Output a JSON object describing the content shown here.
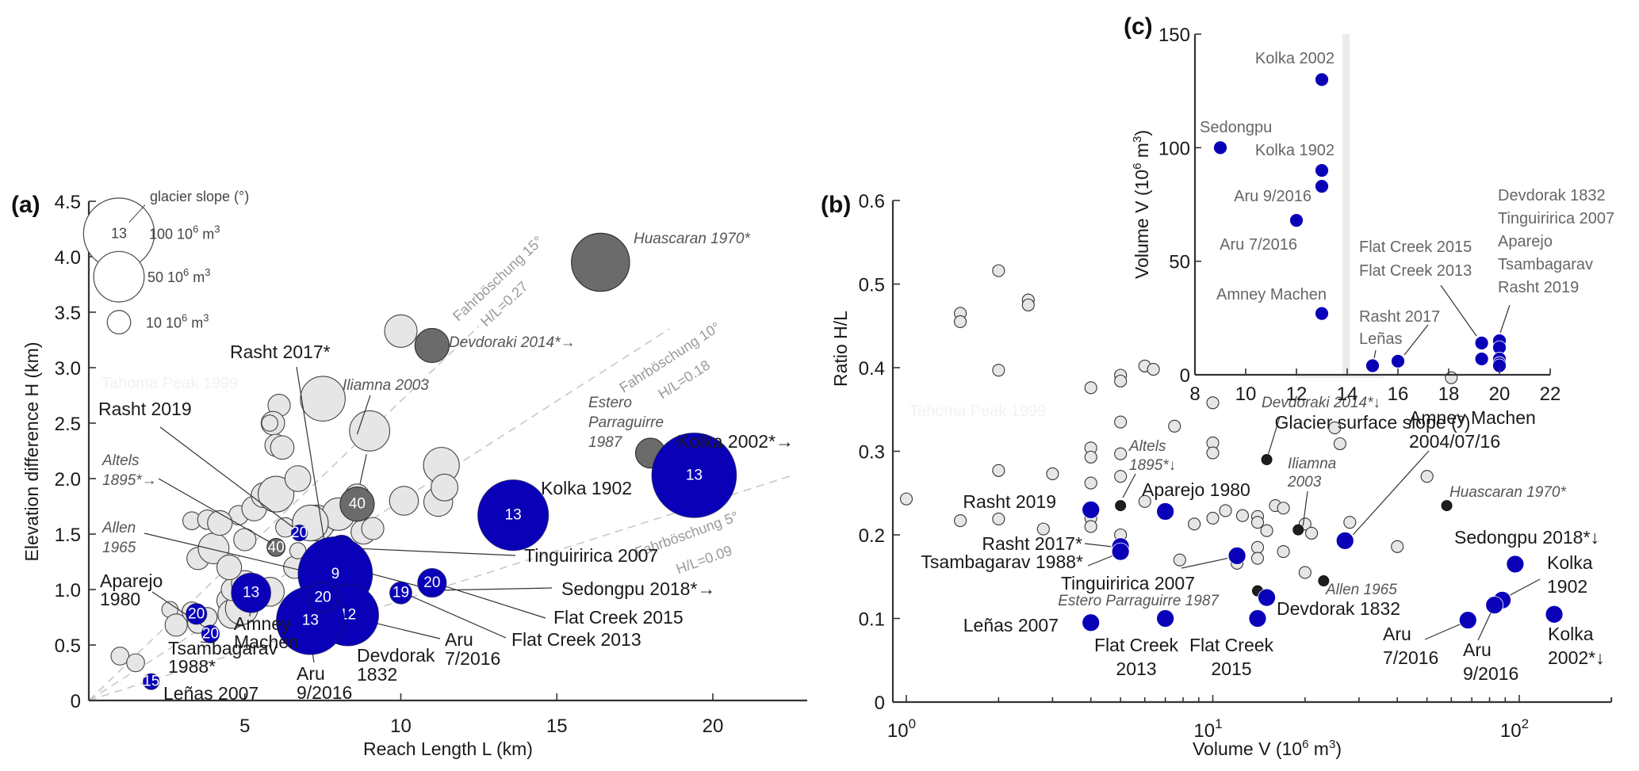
{
  "chart_data": [
    {
      "id": "a",
      "type": "scatter",
      "panel_label": "(a)",
      "xlabel": "Reach Length L (km)",
      "ylabel": "Elevation difference H (km)",
      "xlim": [
        0,
        23.2
      ],
      "ylim": [
        0,
        4.5
      ],
      "xticks": [
        5,
        10,
        15,
        20
      ],
      "xtick_labels": [
        "5",
        "10",
        "15",
        "20"
      ],
      "yticks": [
        0,
        0.5,
        1.0,
        1.5,
        2.0,
        2.5,
        3.0,
        3.5,
        4.0,
        4.5
      ],
      "ytick_labels": [
        "0",
        "0.5",
        "1.0",
        "1.5",
        "2.0",
        "2.5",
        "3.0",
        "3.5",
        "4.0",
        "4.5"
      ],
      "grid": false,
      "bubble_size_meaning": "volume (10^6 m^3)",
      "legend": {
        "title": "glacier slope (°)",
        "example_slope": "13",
        "entries": [
          {
            "volume": 100,
            "label": "100 10",
            "sup": "6",
            "unit": " m",
            "sup2": "3"
          },
          {
            "volume": 50,
            "label": "50 10",
            "sup": "6",
            "unit": " m",
            "sup2": "3"
          },
          {
            "volume": 10,
            "label": "10 10",
            "sup": "6",
            "unit": " m",
            "sup2": "3"
          }
        ],
        "placement": "top-left"
      },
      "fahrboeschung": [
        {
          "angle_label": "Fahrböschung 15°",
          "ratio_label": "H/L=0.27",
          "ratio": 0.27
        },
        {
          "angle_label": "Fahrböschung 10°",
          "ratio_label": "H/L=0.18",
          "ratio": 0.18
        },
        {
          "angle_label": "Fahrböschung 5°",
          "ratio_label": "H/L=0.09",
          "ratio": 0.09
        }
      ],
      "glacier_events": [
        {
          "name": "Kolka 2002*→",
          "L": 19.4,
          "H": 2.03,
          "volume": 130,
          "slope": "13"
        },
        {
          "name": "Kolka 1902",
          "L": 13.6,
          "H": 1.67,
          "volume": 90,
          "slope": "13"
        },
        {
          "name": "Flat Creek 2015",
          "L": 11.0,
          "H": 1.06,
          "volume": 14,
          "slope": "20"
        },
        {
          "name": "Flat Creek 2013",
          "L": 10.0,
          "H": 0.97,
          "volume": 8,
          "slope": "19"
        },
        {
          "name": "Tinguiririca 2007",
          "L": 8.1,
          "H": 1.37,
          "volume": 12,
          "slope": "20"
        },
        {
          "name": "Rasht 2017*",
          "L": 7.6,
          "H": 1.36,
          "volume": 5,
          "slope": "16"
        },
        {
          "name": "Sedongpu 2018*→",
          "L": 7.9,
          "H": 1.14,
          "volume": 100,
          "slope": "9"
        },
        {
          "name": "Rasht 2019",
          "L": 6.75,
          "H": 1.51,
          "volume": 4,
          "slope": "20"
        },
        {
          "name": "Aru 7/2016",
          "L": 8.3,
          "H": 0.77,
          "volume": 68,
          "slope": "12"
        },
        {
          "name": "Aru 9/2016",
          "L": 7.1,
          "H": 0.72,
          "volume": 83,
          "slope": "13"
        },
        {
          "name": "Devdorak 1832",
          "L": 7.5,
          "H": 0.93,
          "volume": 15,
          "slope": "20"
        },
        {
          "name": "Amney Machen",
          "L": 5.2,
          "H": 0.97,
          "volume": 27,
          "slope": "13"
        },
        {
          "name": "Aparejo 1980",
          "L": 3.45,
          "H": 0.78,
          "volume": 7,
          "slope": "20"
        },
        {
          "name": "Tsambagarav 1988*",
          "L": 3.9,
          "H": 0.6,
          "volume": 5,
          "slope": "20"
        },
        {
          "name": "Leñas 2007",
          "L": 2.0,
          "H": 0.17,
          "volume": 4,
          "slope": "15"
        }
      ],
      "other_events_dark": [
        {
          "name": "Huascaran 1970*",
          "L": 16.4,
          "H": 3.95,
          "volume": 60
        },
        {
          "name": "Devdoraki 2014*→",
          "L": 11.0,
          "H": 3.2,
          "volume": 20
        },
        {
          "name": "Estero Parraguirre 1987",
          "L": 18.0,
          "H": 2.23,
          "volume": 15
        },
        {
          "name": "Iliamna 2003 (40)",
          "L": 8.6,
          "H": 1.77,
          "volume": 20,
          "slope": "40"
        },
        {
          "name": "Altels 1895*→ (40)",
          "L": 6.0,
          "H": 1.38,
          "volume": 5,
          "slope": "40"
        },
        {
          "name": "Allen 1965",
          "L": 7.6,
          "H": 1.1,
          "volume": 23
        }
      ],
      "annotations_italic": [
        "Iliamna 2003",
        "Devdoraki 2014*→",
        "Huascaran 1970*",
        "Estero Parraguirre 1987",
        "Altels 1895*→",
        "Allen 1965"
      ],
      "ghost_label": "Tahoma Peak 1999",
      "other_events_light": [
        {
          "L": 1.0,
          "H": 0.4,
          "volume": 5
        },
        {
          "L": 1.5,
          "H": 0.34,
          "volume": 5
        },
        {
          "L": 2.6,
          "H": 0.82,
          "volume": 4
        },
        {
          "L": 2.8,
          "H": 0.68,
          "volume": 8
        },
        {
          "L": 3.3,
          "H": 0.8,
          "volume": 6
        },
        {
          "L": 3.5,
          "H": 0.7,
          "volume": 7
        },
        {
          "L": 3.8,
          "H": 0.75,
          "volume": 6
        },
        {
          "L": 4.5,
          "H": 0.9,
          "volume": 10
        },
        {
          "L": 4.6,
          "H": 0.78,
          "volume": 14
        },
        {
          "L": 4.9,
          "H": 0.83,
          "volume": 18
        },
        {
          "L": 4.6,
          "H": 1.0,
          "volume": 8
        },
        {
          "L": 3.5,
          "H": 1.28,
          "volume": 8
        },
        {
          "L": 3.3,
          "H": 1.62,
          "volume": 5
        },
        {
          "L": 3.8,
          "H": 1.63,
          "volume": 6
        },
        {
          "L": 4.0,
          "H": 1.37,
          "volume": 16
        },
        {
          "L": 4.8,
          "H": 1.67,
          "volume": 6
        },
        {
          "L": 4.2,
          "H": 1.6,
          "volume": 10
        },
        {
          "L": 5.0,
          "H": 1.45,
          "volume": 8
        },
        {
          "L": 5.3,
          "H": 1.73,
          "volume": 10
        },
        {
          "L": 5.6,
          "H": 1.85,
          "volume": 10
        },
        {
          "L": 6.0,
          "H": 1.86,
          "volume": 22
        },
        {
          "L": 6.1,
          "H": 2.66,
          "volume": 8
        },
        {
          "L": 5.9,
          "H": 2.5,
          "volume": 9
        },
        {
          "L": 5.8,
          "H": 2.5,
          "volume": 4
        },
        {
          "L": 6.0,
          "H": 2.3,
          "volume": 8
        },
        {
          "L": 6.2,
          "H": 2.28,
          "volume": 9
        },
        {
          "L": 6.3,
          "H": 1.56,
          "volume": 6
        },
        {
          "L": 6.7,
          "H": 2.0,
          "volume": 11
        },
        {
          "L": 7.5,
          "H": 2.72,
          "volume": 35
        },
        {
          "L": 7.6,
          "H": 1.62,
          "volume": 10
        },
        {
          "L": 7.3,
          "H": 1.6,
          "volume": 22
        },
        {
          "L": 8.0,
          "H": 1.68,
          "volume": 18
        },
        {
          "L": 8.6,
          "H": 1.84,
          "volume": 10
        },
        {
          "L": 8.8,
          "H": 1.52,
          "volume": 10
        },
        {
          "L": 9.0,
          "H": 2.43,
          "volume": 28
        },
        {
          "L": 10.0,
          "H": 3.33,
          "volume": 18
        },
        {
          "L": 10.1,
          "H": 1.8,
          "volume": 14
        },
        {
          "L": 11.2,
          "H": 1.79,
          "volume": 14
        },
        {
          "L": 11.3,
          "H": 2.12,
          "volume": 22
        },
        {
          "L": 11.4,
          "H": 1.92,
          "volume": 12
        },
        {
          "L": 9.1,
          "H": 1.55,
          "volume": 8
        },
        {
          "L": 5.8,
          "H": 0.98,
          "volume": 14
        },
        {
          "L": 7.1,
          "H": 1.6,
          "volume": 22
        },
        {
          "L": 6.6,
          "H": 1.2,
          "volume": 8
        },
        {
          "L": 6.7,
          "H": 1.35,
          "volume": 4
        },
        {
          "L": 5.0,
          "H": 1.05,
          "volume": 12
        },
        {
          "L": 4.5,
          "H": 1.2,
          "volume": 10
        }
      ]
    },
    {
      "id": "b",
      "type": "scatter",
      "panel_label": "(b)",
      "xlabel": "Volume V (10",
      "xlabel_sup": "6",
      "xlabel_mid": " m",
      "xlabel_sup2": "3",
      "xlabel_end": ")",
      "ylabel": "Ratio H/L",
      "xscale": "log",
      "xlim": [
        0.92,
        200
      ],
      "ylim": [
        0,
        0.6
      ],
      "xticks_major": [
        1,
        10,
        100
      ],
      "xtick_labels": [
        {
          "base": "10",
          "exp": "0"
        },
        {
          "base": "10",
          "exp": "1"
        },
        {
          "base": "10",
          "exp": "2"
        }
      ],
      "yticks": [
        0,
        0.1,
        0.2,
        0.3,
        0.4,
        0.5,
        0.6
      ],
      "ytick_labels": [
        "0",
        "0.1",
        "0.2",
        "0.3",
        "0.4",
        "0.5",
        "0.6"
      ],
      "grid": false,
      "ghost_label": "Tahoma Peak 1999",
      "glacier_events": [
        {
          "name": "Rasht 2019",
          "V": 4.0,
          "ratio": 0.23
        },
        {
          "name": "Aparejo 1980",
          "V": 7.0,
          "ratio": 0.228
        },
        {
          "name": "Rasht 2017*",
          "V": 5.0,
          "ratio": 0.186
        },
        {
          "name": "Tsambagarav 1988*",
          "V": 5.0,
          "ratio": 0.18
        },
        {
          "name": "Tinguiririca 2007",
          "V": 12.0,
          "ratio": 0.175
        },
        {
          "name": "Leñas 2007",
          "V": 4.0,
          "ratio": 0.095
        },
        {
          "name": "Flat Creek 2013",
          "V": 7.0,
          "ratio": 0.1
        },
        {
          "name": "Flat Creek 2015",
          "V": 14.0,
          "ratio": 0.1
        },
        {
          "name": "Devdorak 1832",
          "V": 15.0,
          "ratio": 0.125
        },
        {
          "name": "Amney Machen 2004/07/16",
          "V": 27.0,
          "ratio": 0.193
        },
        {
          "name": "Sedongpu 2018*↓",
          "V": 97.0,
          "ratio": 0.165
        },
        {
          "name": "Kolka 1902",
          "V": 88.0,
          "ratio": 0.122
        },
        {
          "name": "Aru 9/2016",
          "V": 83.0,
          "ratio": 0.116
        },
        {
          "name": "Aru 7/2016",
          "V": 68.0,
          "ratio": 0.098
        },
        {
          "name": "Kolka 2002*↓",
          "V": 130.0,
          "ratio": 0.105
        }
      ],
      "other_events_dark": [
        {
          "name": "Altels 1895*↓",
          "V": 5.0,
          "ratio": 0.235
        },
        {
          "name": "Devdoraki 2014*↓",
          "V": 15.0,
          "ratio": 0.29
        },
        {
          "name": "Iliamna 2003",
          "V": 19.0,
          "ratio": 0.206
        },
        {
          "name": "Huascaran 1970*",
          "V": 58.0,
          "ratio": 0.235
        },
        {
          "name": "Allen 1965",
          "V": 23.0,
          "ratio": 0.145
        },
        {
          "name": "Estero Parraguirre 1987",
          "V": 14.0,
          "ratio": 0.133
        }
      ],
      "other_events_light": [
        {
          "V": 1.0,
          "ratio": 0.243
        },
        {
          "V": 1.5,
          "ratio": 0.465
        },
        {
          "V": 1.5,
          "ratio": 0.455
        },
        {
          "V": 1.5,
          "ratio": 0.217
        },
        {
          "V": 2.0,
          "ratio": 0.516
        },
        {
          "V": 2.0,
          "ratio": 0.397
        },
        {
          "V": 2.0,
          "ratio": 0.277
        },
        {
          "V": 2.0,
          "ratio": 0.219
        },
        {
          "V": 2.5,
          "ratio": 0.481
        },
        {
          "V": 2.5,
          "ratio": 0.475
        },
        {
          "V": 2.8,
          "ratio": 0.207
        },
        {
          "V": 3.0,
          "ratio": 0.273
        },
        {
          "V": 4.0,
          "ratio": 0.376
        },
        {
          "V": 4.0,
          "ratio": 0.304
        },
        {
          "V": 4.0,
          "ratio": 0.293
        },
        {
          "V": 4.0,
          "ratio": 0.262
        },
        {
          "V": 4.0,
          "ratio": 0.22
        },
        {
          "V": 4.0,
          "ratio": 0.21
        },
        {
          "V": 5.0,
          "ratio": 0.391
        },
        {
          "V": 5.0,
          "ratio": 0.384
        },
        {
          "V": 5.0,
          "ratio": 0.335
        },
        {
          "V": 5.0,
          "ratio": 0.297
        },
        {
          "V": 5.0,
          "ratio": 0.27
        },
        {
          "V": 5.0,
          "ratio": 0.2
        },
        {
          "V": 6.0,
          "ratio": 0.402
        },
        {
          "V": 6.4,
          "ratio": 0.398
        },
        {
          "V": 6.0,
          "ratio": 0.24
        },
        {
          "V": 7.5,
          "ratio": 0.33
        },
        {
          "V": 7.8,
          "ratio": 0.17
        },
        {
          "V": 8.7,
          "ratio": 0.213
        },
        {
          "V": 10.0,
          "ratio": 0.358
        },
        {
          "V": 10.0,
          "ratio": 0.31
        },
        {
          "V": 10.0,
          "ratio": 0.298
        },
        {
          "V": 10.0,
          "ratio": 0.22
        },
        {
          "V": 11.0,
          "ratio": 0.229
        },
        {
          "V": 12.0,
          "ratio": 0.166
        },
        {
          "V": 12.5,
          "ratio": 0.223
        },
        {
          "V": 14.0,
          "ratio": 0.222
        },
        {
          "V": 14.0,
          "ratio": 0.215
        },
        {
          "V": 14.0,
          "ratio": 0.185
        },
        {
          "V": 14.0,
          "ratio": 0.172
        },
        {
          "V": 15.0,
          "ratio": 0.205
        },
        {
          "V": 16.0,
          "ratio": 0.235
        },
        {
          "V": 17.0,
          "ratio": 0.232
        },
        {
          "V": 17.0,
          "ratio": 0.18
        },
        {
          "V": 20.0,
          "ratio": 0.213
        },
        {
          "V": 20.0,
          "ratio": 0.155
        },
        {
          "V": 21.0,
          "ratio": 0.202
        },
        {
          "V": 25.0,
          "ratio": 0.328
        },
        {
          "V": 26.0,
          "ratio": 0.309
        },
        {
          "V": 28.0,
          "ratio": 0.215
        },
        {
          "V": 40.0,
          "ratio": 0.186
        },
        {
          "V": 50.0,
          "ratio": 0.27
        },
        {
          "V": 60.0,
          "ratio": 0.388
        }
      ]
    },
    {
      "id": "c",
      "type": "scatter",
      "panel_label": "(c)",
      "xlabel": "Glacier surface slope (°)",
      "ylabel": "Volume V (10",
      "ylabel_sup": "6",
      "ylabel_mid": " m",
      "ylabel_sup2": "3",
      "ylabel_end": ")",
      "xlim": [
        8,
        22
      ],
      "ylim": [
        0,
        150
      ],
      "xticks": [
        8,
        10,
        12,
        14,
        16,
        18,
        20,
        22
      ],
      "xtick_labels": [
        "8",
        "10",
        "12",
        "14",
        "16",
        "18",
        "20",
        "22"
      ],
      "yticks": [
        0,
        50,
        100,
        150
      ],
      "ytick_labels": [
        "0",
        "50",
        "100",
        "150"
      ],
      "grid": false,
      "shaded_band_x": 14,
      "points": [
        {
          "name": "Kolka 2002",
          "slope": 13,
          "V": 130
        },
        {
          "name": "Sedongpu",
          "slope": 9,
          "V": 100
        },
        {
          "name": "Kolka 1902",
          "slope": 13,
          "V": 90
        },
        {
          "name": "Aru 9/2016",
          "slope": 13,
          "V": 83
        },
        {
          "name": "Aru 7/2016",
          "slope": 12,
          "V": 68
        },
        {
          "name": "Amney Machen",
          "slope": 13,
          "V": 27
        },
        {
          "name": "Leñas",
          "slope": 15,
          "V": 4
        },
        {
          "name": "Rasht 2017",
          "slope": 16,
          "V": 6
        },
        {
          "name": "Flat Creek 2015",
          "slope": 19.3,
          "V": 14
        },
        {
          "name": "Flat Creek 2013",
          "slope": 19.3,
          "V": 7
        },
        {
          "name": "Devdorak 1832",
          "slope": 20,
          "V": 15
        },
        {
          "name": "Tinguiririca 2007",
          "slope": 20,
          "V": 12
        },
        {
          "name": "Aparejo",
          "slope": 20,
          "V": 7
        },
        {
          "name": "Tsambagarav",
          "slope": 20,
          "V": 5
        },
        {
          "name": "Rasht 2019",
          "slope": 20,
          "V": 4
        }
      ],
      "labels": {
        "kolka2002": "Kolka 2002",
        "sedongpu": "Sedongpu",
        "kolka1902": "Kolka 1902",
        "aru9": "Aru 9/2016",
        "aru7": "Aru 7/2016",
        "amney": "Amney Machen",
        "fc15": "Flat Creek 2015",
        "fc13": "Flat Creek 2013",
        "rasht17": "Rasht 2017",
        "lenas": "Leñas",
        "group20": [
          "Devdorak 1832",
          "Tinguiririca 2007",
          "Aparejo",
          "Tsambagarav",
          "Rasht 2019"
        ]
      }
    }
  ],
  "colors": {
    "glacier": "#0a00b8",
    "dark_event": "#6b6b6b",
    "dark_event_b": "#1e1e1e",
    "light_event": "#e6e6e6",
    "dashed": "#c8c8c8",
    "shaded_band": "#ebebeb"
  }
}
